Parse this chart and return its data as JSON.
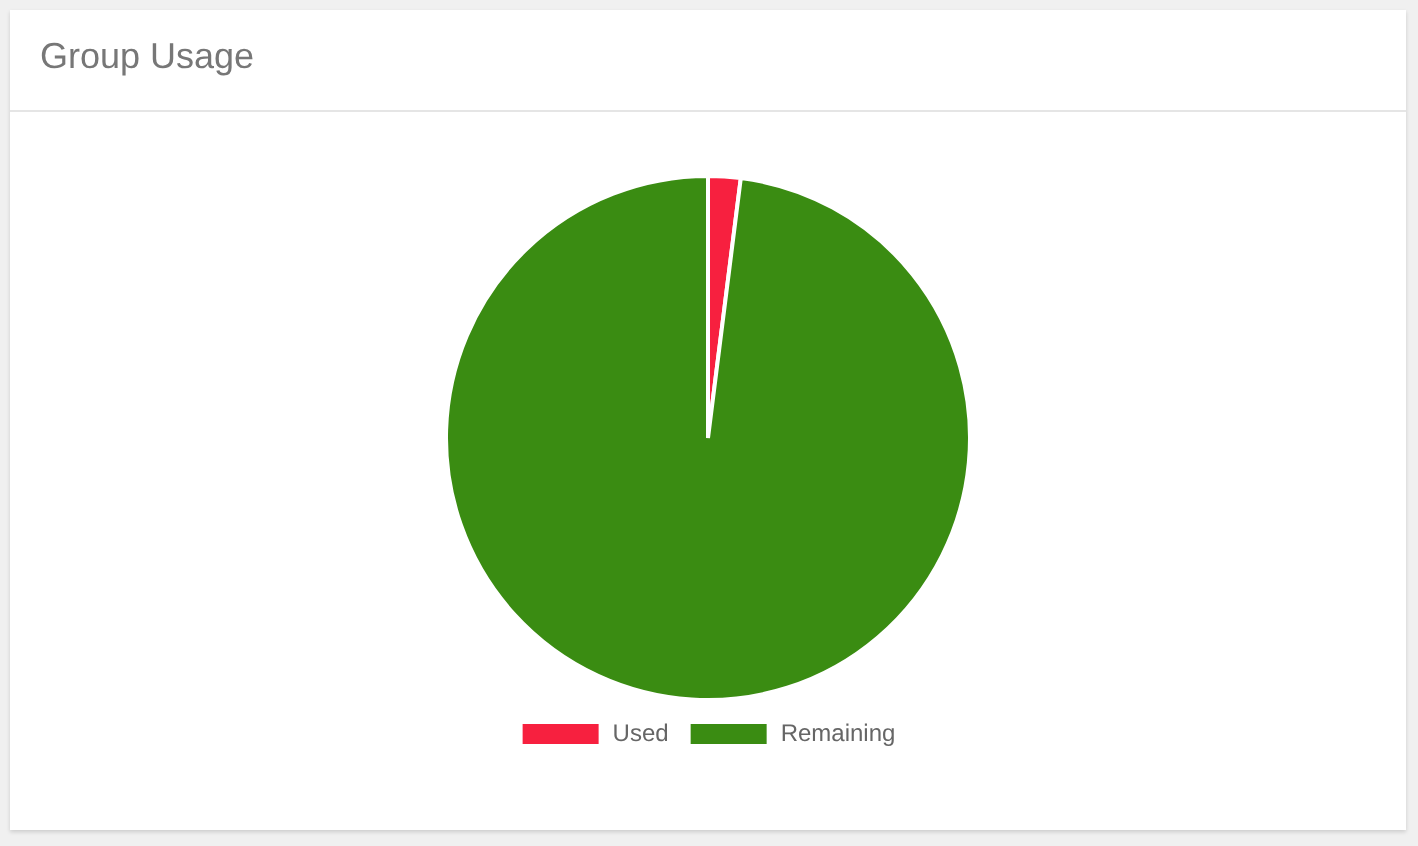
{
  "chart_data": {
    "type": "pie",
    "title": "Group Usage",
    "categories": [
      "Used",
      "Remaining"
    ],
    "values": [
      2,
      98
    ],
    "colors": [
      "#f7203f",
      "#3a8c12"
    ],
    "legend": "bottom"
  }
}
